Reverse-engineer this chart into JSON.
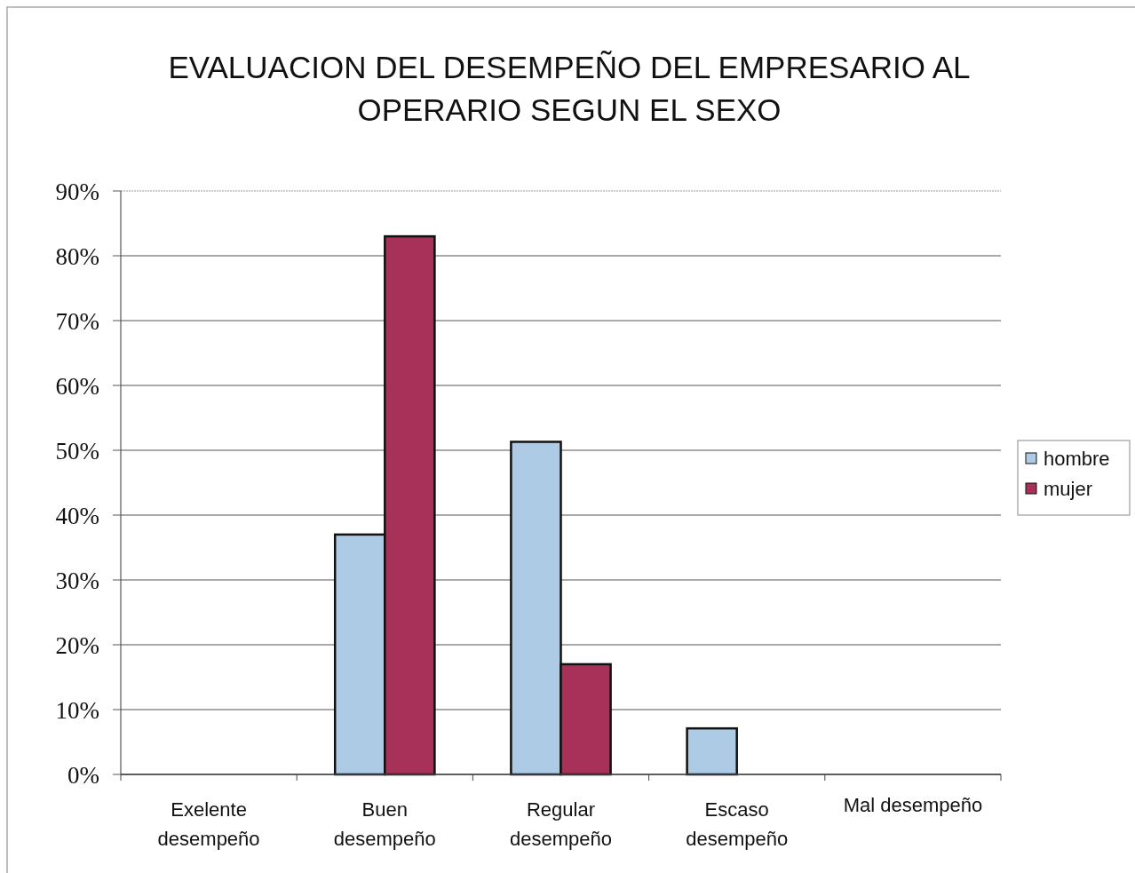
{
  "chart_data": {
    "type": "bar",
    "title": "EVALUACION DEL DESEMPEÑO DEL EMPRESARIO AL\nOPERARIO SEGUN EL SEXO",
    "categories": [
      "Exelente\ndesempeño",
      "Buen\ndesempeño",
      "Regular\ndesempeño",
      "Escaso\ndesempeño",
      "Mal desempeño"
    ],
    "series": [
      {
        "name": "hombre",
        "color": "#aecbe6",
        "values": [
          0,
          37,
          51.3,
          7.1,
          0
        ]
      },
      {
        "name": "mujer",
        "color": "#a8315a",
        "values": [
          0,
          83,
          17,
          0,
          0
        ]
      }
    ],
    "ylim": [
      0,
      90
    ],
    "yticks": [
      {
        "value": 0,
        "label": "0%"
      },
      {
        "value": 10,
        "label": "10%"
      },
      {
        "value": 20,
        "label": "20%"
      },
      {
        "value": 30,
        "label": "30%"
      },
      {
        "value": 40,
        "label": "40%"
      },
      {
        "value": 50,
        "label": "50%"
      },
      {
        "value": 60,
        "label": "60%"
      },
      {
        "value": 70,
        "label": "70%"
      },
      {
        "value": 80,
        "label": "80%"
      },
      {
        "value": 90,
        "label": "90%"
      }
    ],
    "grid": true,
    "legend": "right"
  }
}
